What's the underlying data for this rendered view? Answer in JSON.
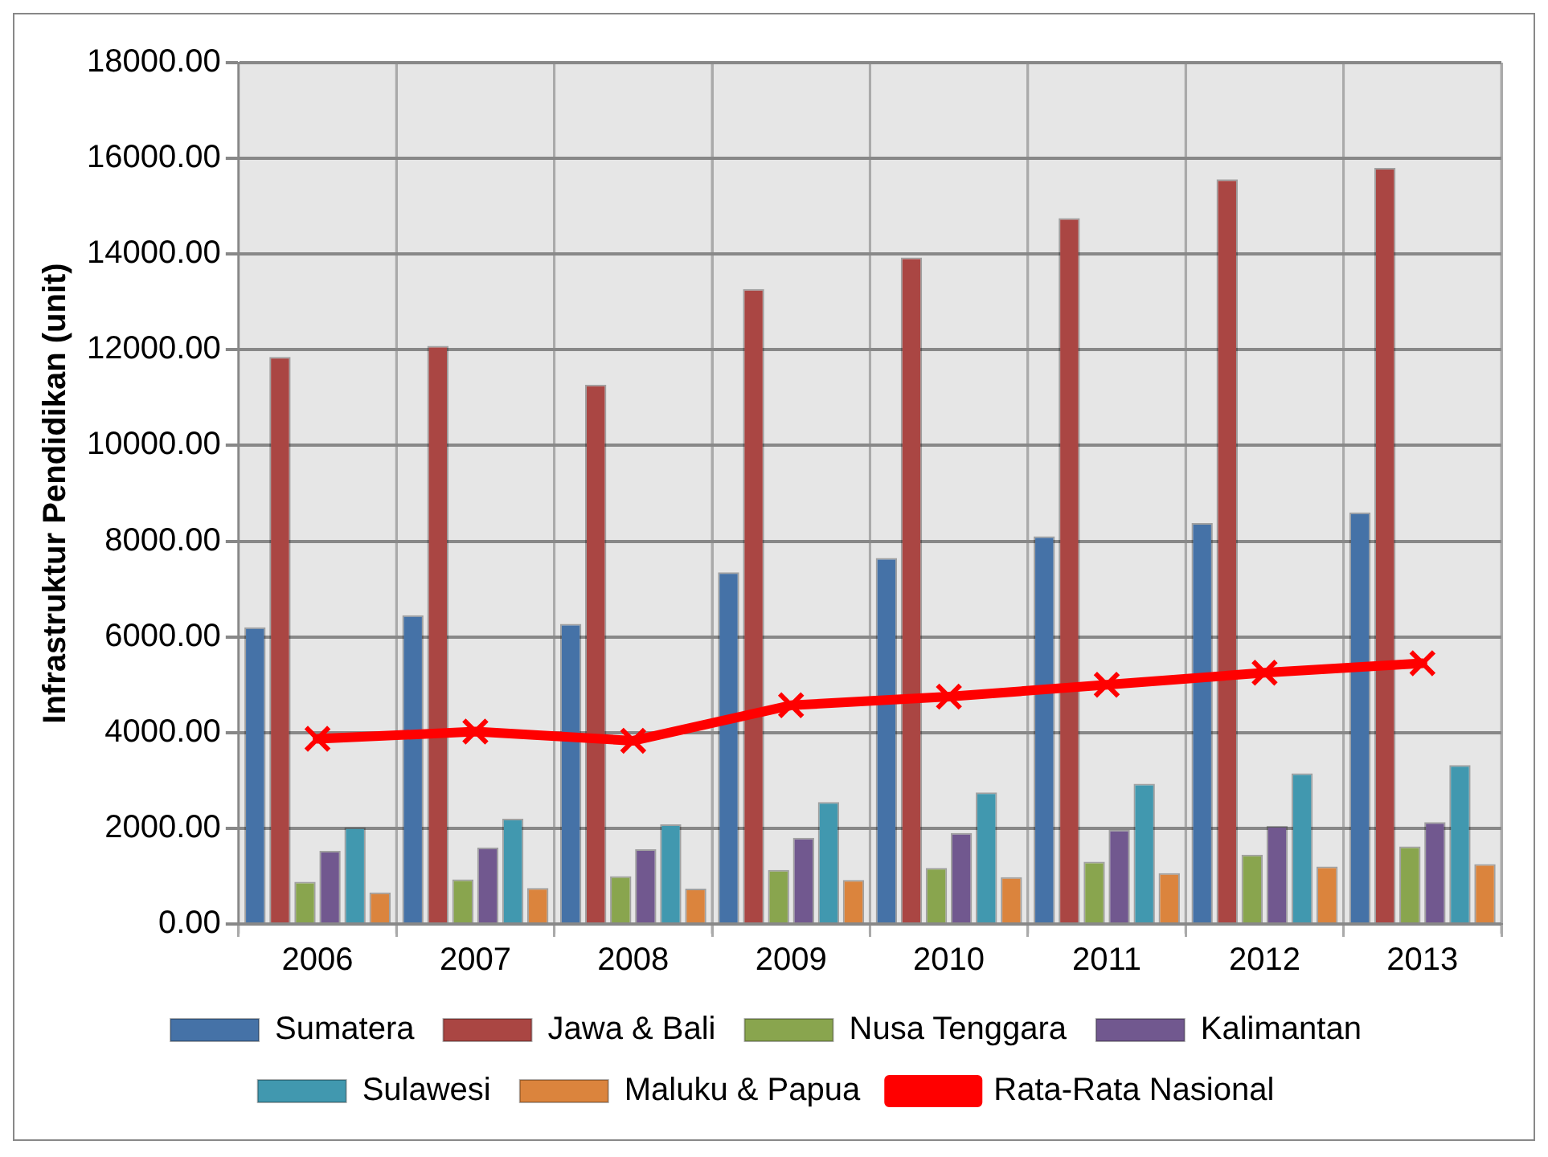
{
  "chart_data": {
    "type": "bar",
    "ylabel": "Infrastruktur Pendidikan (unit)",
    "categories": [
      "2006",
      "2007",
      "2008",
      "2009",
      "2010",
      "2011",
      "2012",
      "2013"
    ],
    "series": [
      {
        "name": "Sumatera",
        "color": "#4572a7",
        "values": [
          6200,
          6450,
          6270,
          7350,
          7650,
          8100,
          8380,
          8600
        ]
      },
      {
        "name": "Jawa & Bali",
        "color": "#aa4643",
        "values": [
          11850,
          12080,
          11270,
          13270,
          13930,
          14750,
          15560,
          15800
        ]
      },
      {
        "name": "Nusa Tenggara",
        "color": "#89a54e",
        "values": [
          880,
          930,
          1000,
          1130,
          1170,
          1300,
          1450,
          1620
        ]
      },
      {
        "name": "Kalimantan",
        "color": "#71588f",
        "values": [
          1530,
          1600,
          1560,
          1800,
          1900,
          1970,
          2050,
          2130
        ]
      },
      {
        "name": "Sulawesi",
        "color": "#4198af",
        "values": [
          2020,
          2200,
          2080,
          2550,
          2750,
          2930,
          3150,
          3320
        ]
      },
      {
        "name": "Maluku & Papua",
        "color": "#db843d",
        "values": [
          660,
          750,
          740,
          920,
          980,
          1060,
          1200,
          1250
        ]
      },
      {
        "name": "Rata-Rata Nasional",
        "type": "line",
        "color": "#ff0000",
        "marker": "cross",
        "values": [
          3870,
          4020,
          3830,
          4570,
          4750,
          5000,
          5250,
          5450
        ]
      }
    ],
    "ylim": [
      0,
      18000
    ],
    "yticks": [
      {
        "value": 0,
        "label": "0.00"
      },
      {
        "value": 2000,
        "label": "2000.00"
      },
      {
        "value": 4000,
        "label": "4000.00"
      },
      {
        "value": 6000,
        "label": "6000.00"
      },
      {
        "value": 8000,
        "label": "8000.00"
      },
      {
        "value": 10000,
        "label": "10000.00"
      },
      {
        "value": 12000,
        "label": "12000.00"
      },
      {
        "value": 14000,
        "label": "14000.00"
      },
      {
        "value": 16000,
        "label": "16000.00"
      },
      {
        "value": 18000,
        "label": "18000.00"
      }
    ],
    "grid": true,
    "legend": "bottom"
  }
}
